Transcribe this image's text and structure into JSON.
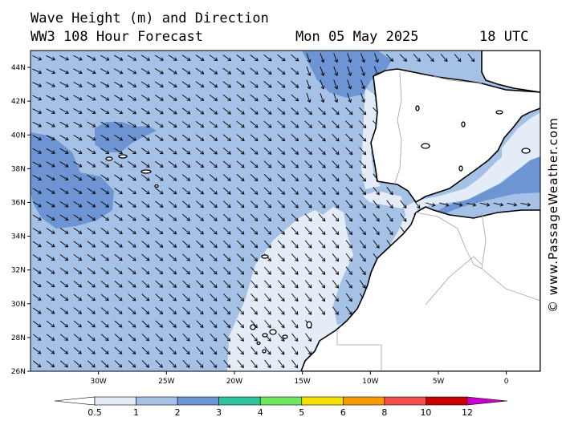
{
  "header": {
    "title": "Wave Height (m) and Direction",
    "model": "WW3 108 Hour Forecast",
    "date": "Mon 05 May 2025",
    "time": "18 UTC"
  },
  "watermark": "© www.PassageWeather.com",
  "map": {
    "lat_labels": [
      "44N",
      "42N",
      "40N",
      "38N",
      "36N",
      "34N",
      "32N",
      "30N",
      "28N",
      "26N"
    ],
    "lon_labels": [
      "30W",
      "25W",
      "20W",
      "15W",
      "10W",
      "5W",
      "0"
    ],
    "lat_range": [
      26,
      45
    ],
    "lon_range": [
      -35,
      2.5
    ],
    "wind_direction": "north-west to south-east",
    "colors": {
      "land": "#ffffff",
      "coast": "#000000",
      "borders": "#a0a0a0"
    }
  },
  "colorbar": {
    "labels": [
      "0.5",
      "1",
      "2",
      "3",
      "4",
      "5",
      "6",
      "8",
      "10",
      "12"
    ],
    "colors": [
      "#e4ecf8",
      "#a6c1e6",
      "#6d95d4",
      "#2ec4a0",
      "#6ee860",
      "#f2e000",
      "#f59a00",
      "#f25050",
      "#c80000",
      "#c800c8"
    ]
  }
}
